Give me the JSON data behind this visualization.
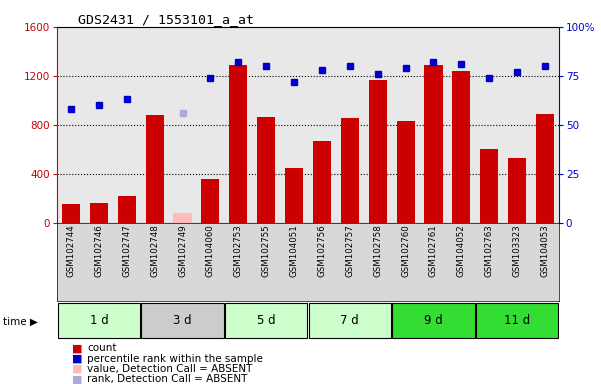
{
  "title": "GDS2431 / 1553101_a_at",
  "samples": [
    "GSM102744",
    "GSM102746",
    "GSM102747",
    "GSM102748",
    "GSM102749",
    "GSM104060",
    "GSM102753",
    "GSM102755",
    "GSM104051",
    "GSM102756",
    "GSM102757",
    "GSM102758",
    "GSM102760",
    "GSM102761",
    "GSM104052",
    "GSM102763",
    "GSM103323",
    "GSM104053"
  ],
  "counts": [
    150,
    160,
    220,
    880,
    80,
    360,
    1290,
    860,
    450,
    670,
    855,
    1170,
    830,
    1290,
    1240,
    600,
    530,
    890
  ],
  "absent_count_val": [
    null,
    null,
    null,
    null,
    80,
    null,
    null,
    null,
    null,
    null,
    null,
    null,
    null,
    null,
    null,
    null,
    null,
    null
  ],
  "percentile_ranks": [
    58,
    60,
    63,
    null,
    null,
    74,
    82,
    80,
    72,
    78,
    80,
    76,
    79,
    82,
    81,
    74,
    77,
    80
  ],
  "absent_rank": [
    null,
    null,
    null,
    null,
    56,
    null,
    null,
    null,
    null,
    null,
    null,
    null,
    null,
    null,
    null,
    null,
    null,
    null
  ],
  "time_groups": [
    {
      "label": "1 d",
      "start": 0,
      "end": 3,
      "color": "#ccffcc"
    },
    {
      "label": "3 d",
      "start": 3,
      "end": 6,
      "color": "#cccccc"
    },
    {
      "label": "5 d",
      "start": 6,
      "end": 9,
      "color": "#ccffcc"
    },
    {
      "label": "7 d",
      "start": 9,
      "end": 12,
      "color": "#ccffcc"
    },
    {
      "label": "9 d",
      "start": 12,
      "end": 15,
      "color": "#33dd33"
    },
    {
      "label": "11 d",
      "start": 15,
      "end": 18,
      "color": "#33dd33"
    }
  ],
  "ylim_left": [
    0,
    1600
  ],
  "ylim_right": [
    0,
    100
  ],
  "yticks_left": [
    0,
    400,
    800,
    1200,
    1600
  ],
  "yticks_right": [
    0,
    25,
    50,
    75,
    100
  ],
  "bar_color": "#cc0000",
  "absent_bar_color": "#ffbbbb",
  "dot_color": "#0000cc",
  "absent_dot_color": "#aaaadd",
  "plot_bg_color": "#e8e8e8",
  "sample_bg_color": "#d8d8d8",
  "title_color": "#000000",
  "left_axis_color": "#cc0000",
  "right_axis_color": "#0000cc"
}
